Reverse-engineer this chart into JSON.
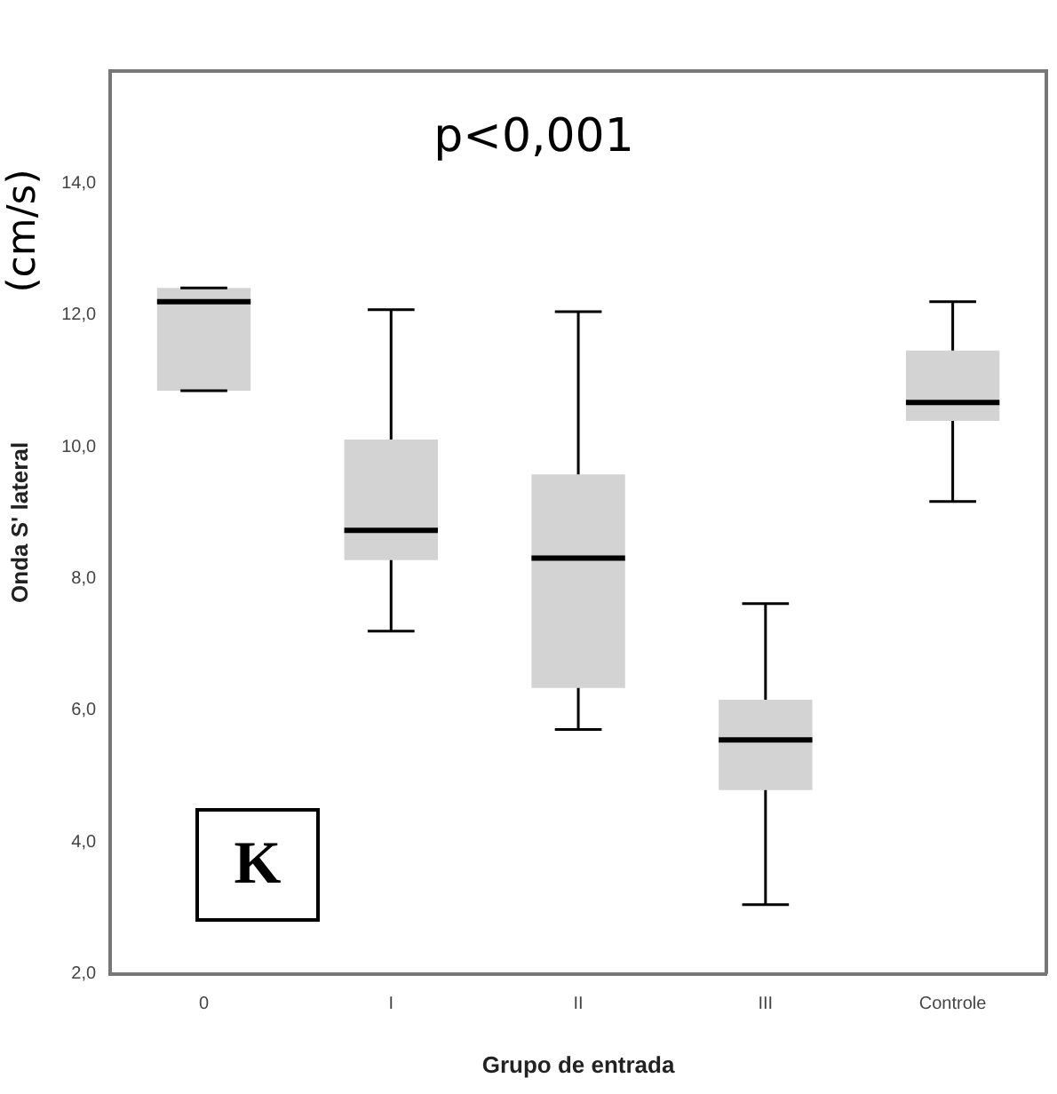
{
  "chart_data": {
    "type": "box",
    "xlabel": "Grupo de entrada",
    "ylabel": "Onda S' lateral",
    "annotations": [
      "p<0,001",
      "(cm/s)",
      "K"
    ],
    "categories": [
      "0",
      "I",
      "II",
      "III",
      "Controle"
    ],
    "color": "#d3d3d3",
    "boxes": [
      {
        "low": 10.85,
        "q1": 10.85,
        "median": 12.2,
        "q3": 12.41,
        "high": 12.41
      },
      {
        "low": 7.2,
        "q1": 8.28,
        "median": 8.73,
        "q3": 10.11,
        "high": 12.08
      },
      {
        "low": 5.71,
        "q1": 6.34,
        "median": 8.31,
        "q3": 9.58,
        "high": 12.05
      },
      {
        "low": 3.05,
        "q1": 4.79,
        "median": 5.55,
        "q3": 6.16,
        "high": 7.62
      },
      {
        "low": 9.17,
        "q1": 10.39,
        "median": 10.67,
        "q3": 11.46,
        "high": 12.2
      }
    ],
    "ylim": [
      2,
      15.7
    ],
    "yticks": [
      {
        "value": 2,
        "label": "2,0"
      },
      {
        "value": 4,
        "label": "4,0"
      },
      {
        "value": 6,
        "label": "6,0"
      },
      {
        "value": 8,
        "label": "8,0"
      },
      {
        "value": 10,
        "label": "10,0"
      },
      {
        "value": 12,
        "label": "12,0"
      },
      {
        "value": 14,
        "label": "14,0"
      }
    ],
    "grid": false,
    "legend": false
  }
}
